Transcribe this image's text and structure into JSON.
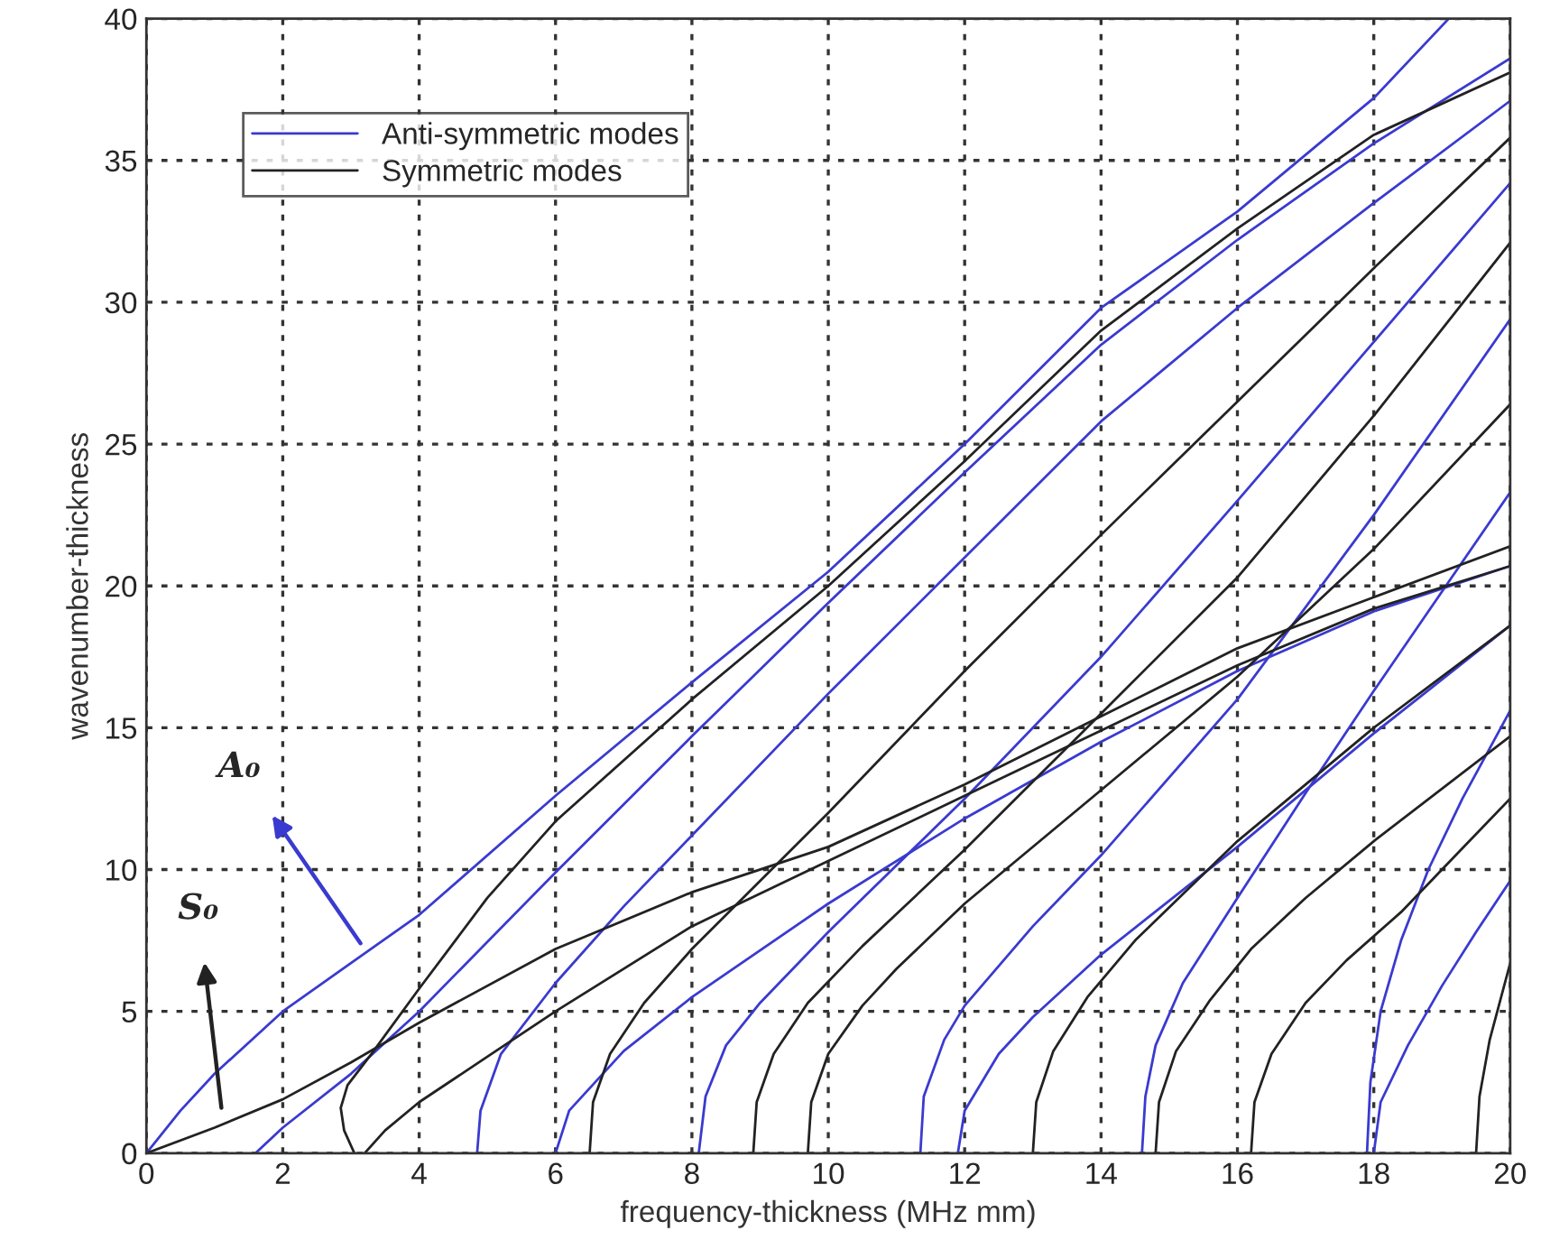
{
  "chart_data": {
    "type": "line",
    "xlabel": "frequency-thickness (MHz mm)",
    "ylabel": "wavenumber-thickness",
    "xlim": [
      0,
      20
    ],
    "ylim": [
      0,
      40
    ],
    "xticks": [
      0,
      2,
      4,
      6,
      8,
      10,
      12,
      14,
      16,
      18,
      20
    ],
    "yticks": [
      0,
      5,
      10,
      15,
      20,
      25,
      30,
      35,
      40
    ],
    "grid": true,
    "legend": "top left",
    "line_style": "solid",
    "marker": "none",
    "annotations": [
      "A₀",
      "S₀"
    ],
    "series": [
      {
        "name": "Anti-symmetric modes",
        "color": "#3a3ad0",
        "x": [
          0,
          0.5,
          1,
          2,
          3,
          4,
          6,
          8,
          10,
          12,
          14,
          16,
          18,
          19.1
        ],
        "values": [
          0,
          1.5,
          2.8,
          5,
          6.7,
          8.4,
          12.6,
          16.6,
          20.5,
          25,
          29.8,
          33.2,
          37.2,
          40
        ]
      },
      {
        "color": "#3a3ad0",
        "x": [
          1.6,
          2,
          3,
          4,
          6,
          8,
          10,
          12,
          14,
          16,
          18,
          20
        ],
        "values": [
          0,
          0.9,
          2.8,
          5,
          9.9,
          14.7,
          19.4,
          24,
          28.5,
          32.2,
          35.6,
          38.6
        ]
      },
      {
        "color": "#3a3ad0",
        "x": [
          4.85,
          4.9,
          5.2,
          6,
          7,
          8,
          10,
          12,
          14,
          16,
          18,
          20
        ],
        "values": [
          0,
          1.5,
          3.5,
          6,
          8.7,
          11.2,
          16.2,
          21,
          25.8,
          29.8,
          33.5,
          37.1
        ]
      },
      {
        "color": "#3a3ad0",
        "x": [
          6,
          6.2,
          7,
          8,
          10,
          12,
          14,
          16,
          18,
          20
        ],
        "values": [
          0,
          1.5,
          3.6,
          5.5,
          8.8,
          11.8,
          14.5,
          17,
          19.1,
          20.7
        ]
      },
      {
        "color": "#3a3ad0",
        "x": [
          8.1,
          8.2,
          8.5,
          9,
          10,
          12,
          14,
          16,
          18,
          20
        ],
        "values": [
          0,
          2,
          3.8,
          5.3,
          7.8,
          12.5,
          17.5,
          23,
          28.6,
          34.2
        ]
      },
      {
        "color": "#3a3ad0",
        "x": [
          11.35,
          11.4,
          11.7,
          12,
          13,
          14,
          16,
          18,
          20
        ],
        "values": [
          0,
          2,
          4,
          5.2,
          8,
          10.5,
          16,
          22.5,
          29.4
        ]
      },
      {
        "color": "#3a3ad0",
        "x": [
          11.9,
          12,
          12.5,
          13,
          14,
          16,
          18,
          20
        ],
        "values": [
          0,
          1.5,
          3.5,
          4.8,
          7,
          10.8,
          14.8,
          18.6
        ]
      },
      {
        "color": "#3a3ad0",
        "x": [
          14.6,
          14.65,
          14.8,
          15.2,
          16,
          17,
          18,
          19,
          20
        ],
        "values": [
          0,
          2,
          3.8,
          6,
          9,
          12.7,
          16.3,
          19.8,
          23.3
        ]
      },
      {
        "color": "#3a3ad0",
        "x": [
          17.9,
          17.95,
          18.1,
          18.4,
          18.8,
          19.3,
          20
        ],
        "values": [
          0,
          2.5,
          5,
          7.5,
          10,
          12.5,
          15.6
        ]
      },
      {
        "color": "#3a3ad0",
        "x": [
          18,
          18.1,
          18.5,
          19,
          19.5,
          20
        ],
        "values": [
          0,
          1.8,
          3.8,
          5.9,
          7.8,
          9.6
        ]
      },
      {
        "name": "Symmetric modes",
        "color": "#222222",
        "x": [
          0,
          1,
          2,
          3,
          4,
          6,
          8,
          10,
          12,
          14,
          16,
          18,
          20
        ],
        "values": [
          0,
          0.9,
          1.9,
          3.2,
          4.6,
          7.2,
          9.2,
          10.8,
          13,
          15.4,
          17.8,
          19.6,
          21.4
        ]
      },
      {
        "color": "#222222",
        "x": [
          3.05,
          2.9,
          2.85,
          2.95,
          3.3,
          4,
          5,
          6,
          8,
          10,
          12,
          14,
          16,
          18,
          20
        ],
        "values": [
          0,
          0.8,
          1.6,
          2.4,
          3.5,
          5.8,
          9,
          11.7,
          16,
          20,
          24.4,
          29,
          32.6,
          35.9,
          38.1
        ]
      },
      {
        "color": "#222222",
        "x": [
          3.2,
          3.5,
          4,
          5,
          6,
          8,
          10,
          12,
          14,
          16,
          18,
          20
        ],
        "values": [
          0,
          0.8,
          1.8,
          3.4,
          5,
          8,
          10.3,
          12.6,
          14.9,
          17.2,
          19.2,
          20.7
        ]
      },
      {
        "color": "#222222",
        "x": [
          6.5,
          6.55,
          6.8,
          7.3,
          8,
          10,
          12,
          14,
          16,
          18,
          20
        ],
        "values": [
          0,
          1.8,
          3.5,
          5.3,
          7.2,
          12,
          17,
          21.8,
          26.5,
          31.2,
          35.8
        ]
      },
      {
        "color": "#222222",
        "x": [
          8.9,
          8.95,
          9.2,
          9.7,
          10.5,
          12,
          14,
          16,
          18,
          20
        ],
        "values": [
          0,
          1.8,
          3.5,
          5.3,
          7.3,
          10.7,
          15.5,
          20.3,
          26,
          32.1
        ]
      },
      {
        "color": "#222222",
        "x": [
          9.7,
          9.75,
          10,
          10.5,
          11,
          12,
          14,
          16,
          18,
          20
        ],
        "values": [
          0,
          1.8,
          3.5,
          5.2,
          6.5,
          8.8,
          12.8,
          16.8,
          21.3,
          26.4
        ]
      },
      {
        "color": "#222222",
        "x": [
          13,
          13.05,
          13.3,
          13.8,
          14.5,
          16,
          18,
          20
        ],
        "values": [
          0,
          1.8,
          3.6,
          5.5,
          7.5,
          11,
          15,
          18.6
        ]
      },
      {
        "color": "#222222",
        "x": [
          14.8,
          14.85,
          15.1,
          15.6,
          16.2,
          17,
          18,
          20
        ],
        "values": [
          0,
          1.8,
          3.6,
          5.4,
          7.2,
          9,
          11,
          14.7
        ]
      },
      {
        "color": "#222222",
        "x": [
          16.2,
          16.25,
          16.5,
          17,
          17.6,
          18.4,
          19.2,
          20
        ],
        "values": [
          0,
          1.8,
          3.5,
          5.3,
          6.8,
          8.5,
          10.5,
          12.5
        ]
      },
      {
        "color": "#222222",
        "x": [
          19.5,
          19.55,
          19.7,
          20
        ],
        "values": [
          0,
          2,
          4,
          6.7
        ]
      }
    ]
  }
}
